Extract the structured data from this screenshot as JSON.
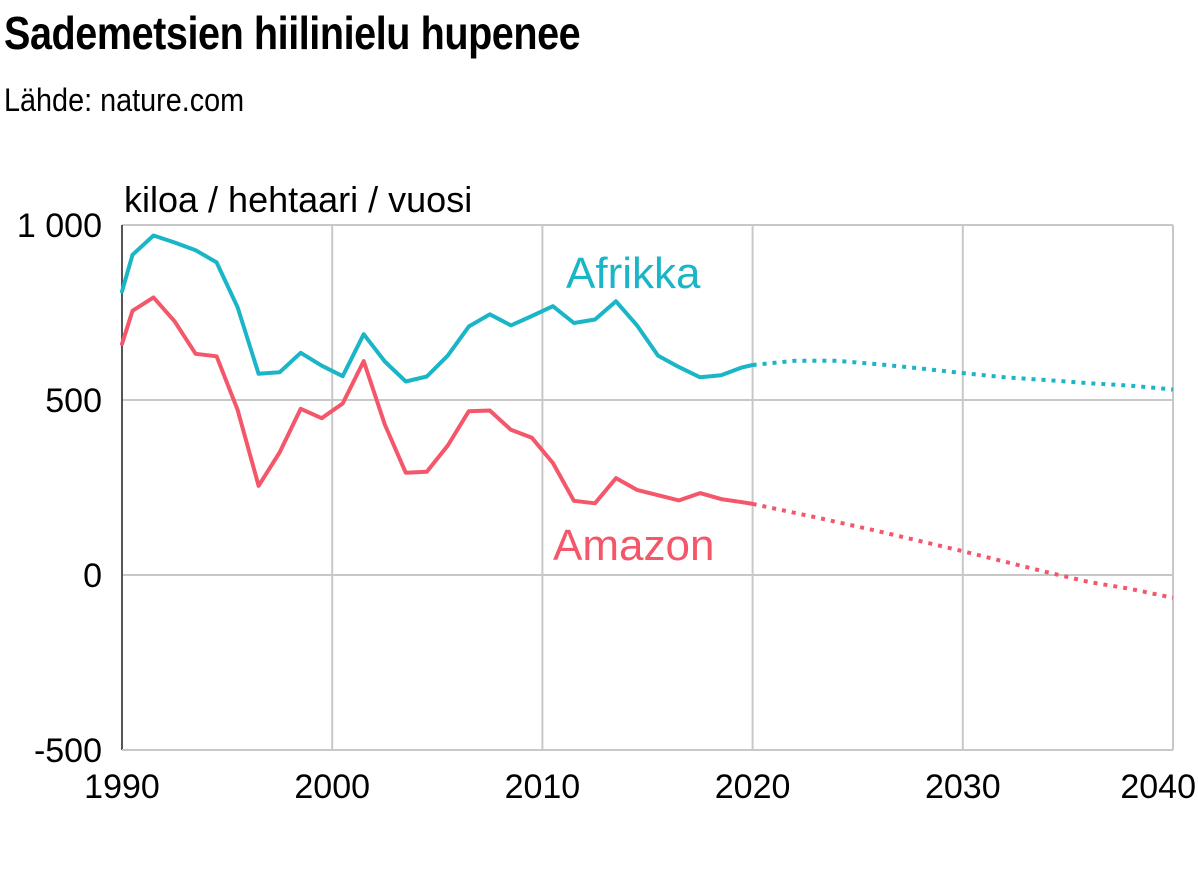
{
  "header": {
    "title": "Sademetsien hiilinielu hupenee",
    "subtitle": "Lähde: nature.com"
  },
  "colors": {
    "afrikka": "#1ab5c6",
    "amazon": "#f4566a",
    "grid": "#c8c8c8",
    "axis": "#555555"
  },
  "chart_data": {
    "type": "line",
    "title": "Sademetsien hiilinielu hupenee",
    "subtitle": "Lähde: nature.com",
    "ylabel": "kiloa / hehtaari / vuosi",
    "xlabel": "",
    "xlim": [
      1990,
      2040
    ],
    "ylim": [
      -500,
      1000
    ],
    "x_ticks": [
      "1990",
      "2000",
      "2010",
      "2020",
      "2030",
      "2040"
    ],
    "y_ticks": [
      "1 000",
      "500",
      "0",
      "-500"
    ],
    "y_tick_values": [
      1000,
      500,
      0,
      -500
    ],
    "grid": true,
    "series": [
      {
        "name": "Afrikka",
        "color": "#1ab5c6",
        "observed": [
          [
            1990,
            810
          ],
          [
            1990.5,
            915
          ],
          [
            1991.5,
            970
          ],
          [
            1992.5,
            950
          ],
          [
            1993.5,
            928
          ],
          [
            1994.5,
            893
          ],
          [
            1995.5,
            765
          ],
          [
            1996.5,
            575
          ],
          [
            1997.5,
            579
          ],
          [
            1998.5,
            635
          ],
          [
            1999.5,
            598
          ],
          [
            2000.5,
            568
          ],
          [
            2001.5,
            688
          ],
          [
            2002.5,
            610
          ],
          [
            2003.5,
            553
          ],
          [
            2004.5,
            567
          ],
          [
            2005.5,
            627
          ],
          [
            2006.5,
            710
          ],
          [
            2007.5,
            745
          ],
          [
            2008.5,
            713
          ],
          [
            2009.5,
            740
          ],
          [
            2010.5,
            768
          ],
          [
            2011.5,
            720
          ],
          [
            2012.5,
            730
          ],
          [
            2013.5,
            782
          ],
          [
            2014.5,
            713
          ],
          [
            2015.5,
            627
          ],
          [
            2016.5,
            594
          ],
          [
            2017.5,
            565
          ],
          [
            2018.5,
            571
          ],
          [
            2019.5,
            593
          ],
          [
            2020,
            600
          ]
        ],
        "projected": [
          [
            2020,
            600
          ],
          [
            2022,
            612
          ],
          [
            2024,
            612
          ],
          [
            2026,
            602
          ],
          [
            2028,
            590
          ],
          [
            2030,
            577
          ],
          [
            2032,
            565
          ],
          [
            2034,
            557
          ],
          [
            2036,
            548
          ],
          [
            2038,
            541
          ],
          [
            2040,
            530
          ]
        ]
      },
      {
        "name": "Amazon",
        "color": "#f4566a",
        "observed": [
          [
            1990,
            660
          ],
          [
            1990.5,
            755
          ],
          [
            1991.5,
            793
          ],
          [
            1992.5,
            725
          ],
          [
            1993.5,
            632
          ],
          [
            1994.5,
            625
          ],
          [
            1995.5,
            472
          ],
          [
            1996.5,
            255
          ],
          [
            1997.5,
            350
          ],
          [
            1998.5,
            475
          ],
          [
            1999.5,
            448
          ],
          [
            2000.5,
            490
          ],
          [
            2001.5,
            611
          ],
          [
            2002.5,
            430
          ],
          [
            2003.5,
            292
          ],
          [
            2004.5,
            295
          ],
          [
            2005.5,
            370
          ],
          [
            2006.5,
            468
          ],
          [
            2007.5,
            470
          ],
          [
            2008.5,
            415
          ],
          [
            2009.5,
            392
          ],
          [
            2010.5,
            320
          ],
          [
            2011.5,
            212
          ],
          [
            2012.5,
            205
          ],
          [
            2013.5,
            277
          ],
          [
            2014.5,
            243
          ],
          [
            2015.5,
            228
          ],
          [
            2016.5,
            213
          ],
          [
            2017.5,
            234
          ],
          [
            2018.5,
            217
          ],
          [
            2019.5,
            208
          ],
          [
            2020,
            203
          ]
        ],
        "projected": [
          [
            2020,
            203
          ],
          [
            2023,
            165
          ],
          [
            2026,
            125
          ],
          [
            2030,
            68
          ],
          [
            2034,
            8
          ],
          [
            2036,
            -20
          ],
          [
            2038,
            -40
          ],
          [
            2040,
            -65
          ]
        ]
      }
    ]
  }
}
